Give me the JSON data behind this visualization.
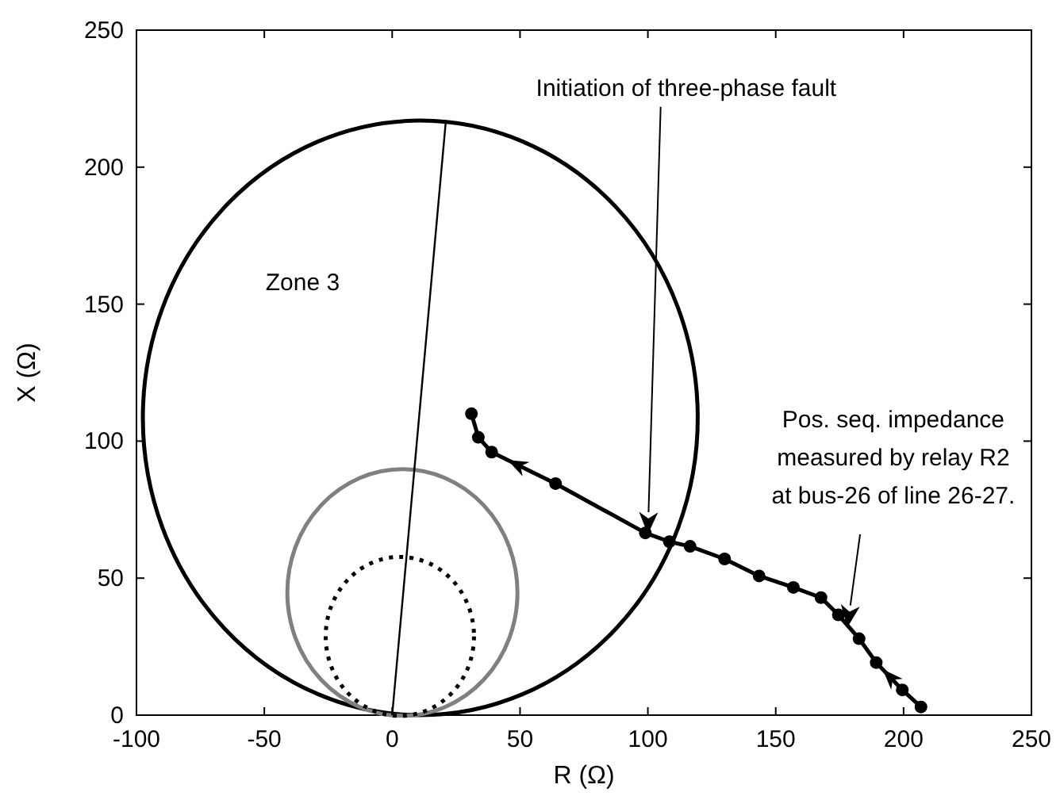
{
  "chart_data": {
    "type": "line",
    "xlabel": "R (Ω)",
    "ylabel": "X (Ω)",
    "xlim": [
      -100,
      250
    ],
    "ylim": [
      0,
      250
    ],
    "xticks": [
      -100,
      -50,
      0,
      50,
      100,
      150,
      200,
      250
    ],
    "yticks": [
      0,
      50,
      100,
      150,
      200,
      250
    ],
    "grid": false,
    "series": [
      {
        "color": "#000000",
        "line_style": "solid",
        "marker": "none",
        "x": [
          0,
          21
        ],
        "values": [
          0,
          217
        ]
      },
      {
        "color": "#000000",
        "line_style": "solid",
        "marker": "circle",
        "x": [
          206.8,
          199.5,
          189.3,
          182.6,
          174.5,
          167.7,
          156.9,
          143.5,
          130,
          116.5,
          108.4,
          99,
          63.9,
          38.9,
          33.7,
          31
        ],
        "values": [
          3,
          9.2,
          19.2,
          27.9,
          36.6,
          42.9,
          46.6,
          50.8,
          57,
          61.6,
          63.3,
          66.5,
          84.5,
          96,
          101.4,
          110
        ]
      }
    ],
    "annotations": [
      "Zone 3",
      "Initiation of three-phase fault",
      "Pos. seq. impedance\nmeasured by relay R2\nat bus-26 of line 26-27."
    ]
  }
}
